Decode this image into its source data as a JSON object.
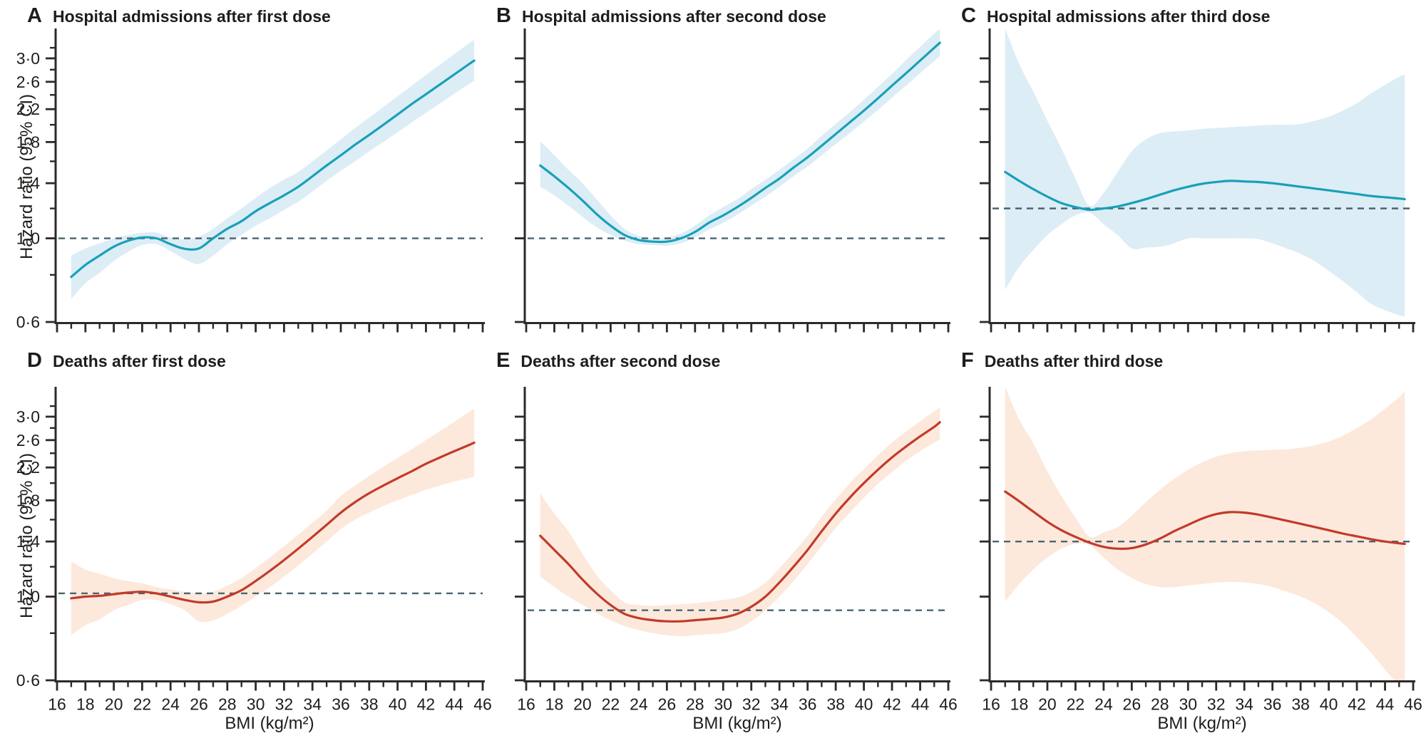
{
  "figure": {
    "y_axis_label": "Hazard ratio (95% CI)",
    "x_axis_label": "BMI (kg/m²)",
    "y_tick_labels": [
      "0·6",
      "1·0",
      "1·4",
      "1·8",
      "2·2",
      "2·6",
      "3·0"
    ],
    "y_tick_values": [
      0.6,
      1.0,
      1.4,
      1.8,
      2.2,
      2.6,
      3.0
    ],
    "y_minor_tick_values": [
      0.8,
      1.2,
      1.6,
      2.0,
      2.4,
      2.8,
      3.2
    ],
    "x_tick_labels": [
      "16",
      "18",
      "20",
      "22",
      "24",
      "26",
      "28",
      "30",
      "32",
      "34",
      "36",
      "38",
      "40",
      "42",
      "44",
      "46"
    ],
    "x_tick_values": [
      16,
      18,
      20,
      22,
      24,
      26,
      28,
      30,
      32,
      34,
      36,
      38,
      40,
      42,
      44,
      46
    ],
    "x_minor_tick_values": [
      17,
      19,
      21,
      23,
      25,
      27,
      29,
      31,
      33,
      35,
      37,
      39,
      41,
      43,
      45
    ],
    "colors": {
      "teal_line": "#18a0b8",
      "teal_band": "#dcedf6",
      "red_line": "#c23a2a",
      "red_band": "#fce9dc",
      "reference_dash": "#4a6470",
      "axis": "#2b2a28",
      "text": "#1d1d1b"
    }
  },
  "panels": [
    {
      "letter": "A",
      "title": "Hospital admissions after first dose",
      "color_key": "teal",
      "reference_line": 1.0,
      "chart_data": {
        "type": "line",
        "xlabel": "BMI (kg/m²)",
        "ylabel": "Hazard ratio (95% CI)",
        "y_scale": "log",
        "ylim": [
          0.6,
          3.6
        ],
        "xlim": [
          16,
          46
        ],
        "x": [
          17,
          18,
          19,
          20,
          21,
          22,
          23,
          24,
          25,
          26,
          27,
          28,
          29,
          30,
          31,
          32,
          33,
          34,
          35,
          36,
          37,
          38,
          39,
          40,
          41,
          42,
          43,
          44,
          45,
          45.4
        ],
        "hazard_ratio": [
          0.79,
          0.85,
          0.9,
          0.95,
          0.985,
          1.005,
          1.0,
          0.965,
          0.938,
          0.94,
          1.0,
          1.06,
          1.11,
          1.18,
          1.24,
          1.3,
          1.37,
          1.46,
          1.56,
          1.66,
          1.77,
          1.88,
          2.0,
          2.13,
          2.27,
          2.41,
          2.56,
          2.72,
          2.89,
          2.96
        ],
        "ci_lower": [
          0.69,
          0.76,
          0.81,
          0.87,
          0.92,
          0.96,
          0.965,
          0.925,
          0.88,
          0.855,
          0.9,
          0.965,
          1.02,
          1.08,
          1.13,
          1.19,
          1.25,
          1.33,
          1.42,
          1.51,
          1.6,
          1.7,
          1.8,
          1.91,
          2.03,
          2.15,
          2.28,
          2.42,
          2.56,
          2.62
        ],
        "ci_upper": [
          0.9,
          0.94,
          0.97,
          1.0,
          1.02,
          1.035,
          1.035,
          1.005,
          0.995,
          1.01,
          1.06,
          1.13,
          1.2,
          1.28,
          1.36,
          1.43,
          1.5,
          1.6,
          1.71,
          1.83,
          1.96,
          2.09,
          2.23,
          2.38,
          2.54,
          2.71,
          2.89,
          3.08,
          3.28,
          3.36
        ]
      }
    },
    {
      "letter": "B",
      "title": "Hospital admissions after second dose",
      "color_key": "teal",
      "reference_line": 1.0,
      "chart_data": {
        "type": "line",
        "xlabel": "BMI (kg/m²)",
        "ylabel": "Hazard ratio (95% CI)",
        "y_scale": "log",
        "ylim": [
          0.6,
          3.6
        ],
        "xlim": [
          16,
          46
        ],
        "x": [
          17,
          18,
          19,
          20,
          21,
          22,
          23,
          24,
          25,
          26,
          27,
          28,
          29,
          30,
          31,
          32,
          33,
          34,
          35,
          36,
          37,
          38,
          39,
          40,
          41,
          42,
          43,
          44,
          45,
          45.4
        ],
        "hazard_ratio": [
          1.56,
          1.46,
          1.36,
          1.26,
          1.16,
          1.08,
          1.02,
          0.99,
          0.98,
          0.98,
          1.0,
          1.04,
          1.1,
          1.15,
          1.21,
          1.28,
          1.36,
          1.44,
          1.54,
          1.64,
          1.76,
          1.89,
          2.03,
          2.18,
          2.35,
          2.54,
          2.74,
          2.96,
          3.2,
          3.3
        ],
        "ci_lower": [
          1.37,
          1.3,
          1.22,
          1.14,
          1.07,
          1.02,
          0.985,
          0.965,
          0.96,
          0.955,
          0.97,
          1.005,
          1.055,
          1.1,
          1.155,
          1.22,
          1.29,
          1.37,
          1.46,
          1.55,
          1.66,
          1.78,
          1.9,
          2.04,
          2.19,
          2.36,
          2.54,
          2.74,
          2.95,
          3.04
        ],
        "ci_upper": [
          1.81,
          1.66,
          1.52,
          1.4,
          1.27,
          1.15,
          1.06,
          1.015,
          1.0,
          1.005,
          1.03,
          1.08,
          1.15,
          1.21,
          1.27,
          1.35,
          1.43,
          1.52,
          1.62,
          1.73,
          1.87,
          2.01,
          2.16,
          2.33,
          2.52,
          2.73,
          2.97,
          3.22,
          3.49,
          3.58
        ]
      }
    },
    {
      "letter": "C",
      "title": "Hospital admissions after third dose",
      "color_key": "teal",
      "reference_line": 1.2,
      "chart_data": {
        "type": "line",
        "xlabel": "BMI (kg/m²)",
        "ylabel": "Hazard ratio (95% CI)",
        "y_scale": "log",
        "ylim": [
          0.6,
          3.6
        ],
        "xlim": [
          16,
          46
        ],
        "x": [
          17,
          18,
          19,
          20,
          21,
          22,
          23,
          24,
          25,
          26,
          27,
          28,
          29,
          30,
          31,
          32,
          33,
          34,
          35,
          36,
          37,
          38,
          39,
          40,
          41,
          42,
          43,
          44,
          45,
          45.4
        ],
        "hazard_ratio": [
          1.5,
          1.42,
          1.35,
          1.29,
          1.24,
          1.21,
          1.19,
          1.2,
          1.215,
          1.24,
          1.27,
          1.305,
          1.34,
          1.37,
          1.395,
          1.41,
          1.42,
          1.415,
          1.41,
          1.4,
          1.385,
          1.37,
          1.355,
          1.34,
          1.325,
          1.31,
          1.295,
          1.285,
          1.275,
          1.27
        ],
        "ci_lower": [
          0.73,
          0.84,
          0.93,
          1.02,
          1.09,
          1.15,
          1.17,
          1.09,
          1.02,
          0.94,
          0.945,
          0.95,
          0.97,
          1.0,
          1.0,
          1.0,
          1.0,
          1.0,
          0.995,
          0.97,
          0.94,
          0.91,
          0.87,
          0.82,
          0.77,
          0.72,
          0.67,
          0.645,
          0.625,
          0.62
        ],
        "ci_upper": [
          3.6,
          2.9,
          2.45,
          2.05,
          1.73,
          1.44,
          1.22,
          1.32,
          1.5,
          1.7,
          1.83,
          1.9,
          1.92,
          1.93,
          1.95,
          1.96,
          1.97,
          1.98,
          1.99,
          2.0,
          2.0,
          2.01,
          2.05,
          2.1,
          2.18,
          2.28,
          2.42,
          2.55,
          2.68,
          2.72
        ]
      }
    },
    {
      "letter": "D",
      "title": "Deaths after first dose",
      "color_key": "red",
      "reference_line": 1.02,
      "chart_data": {
        "type": "line",
        "xlabel": "BMI (kg/m²)",
        "ylabel": "Hazard ratio (95% CI)",
        "y_scale": "log",
        "ylim": [
          0.6,
          3.6
        ],
        "xlim": [
          16,
          46
        ],
        "x": [
          17,
          18,
          19,
          20,
          21,
          22,
          23,
          24,
          25,
          26,
          27,
          28,
          29,
          30,
          31,
          32,
          33,
          34,
          35,
          36,
          37,
          38,
          39,
          40,
          41,
          42,
          43,
          44,
          45,
          45.4
        ],
        "hazard_ratio": [
          0.99,
          1.0,
          1.005,
          1.015,
          1.025,
          1.03,
          1.02,
          1.0,
          0.98,
          0.966,
          0.97,
          1.0,
          1.04,
          1.1,
          1.17,
          1.25,
          1.34,
          1.44,
          1.55,
          1.67,
          1.78,
          1.88,
          1.97,
          2.06,
          2.15,
          2.25,
          2.34,
          2.43,
          2.52,
          2.56
        ],
        "ci_lower": [
          0.79,
          0.84,
          0.87,
          0.92,
          0.95,
          0.98,
          0.98,
          0.955,
          0.92,
          0.86,
          0.865,
          0.9,
          0.945,
          1.0,
          1.06,
          1.13,
          1.21,
          1.3,
          1.4,
          1.51,
          1.6,
          1.67,
          1.74,
          1.8,
          1.86,
          1.92,
          1.97,
          2.02,
          2.06,
          2.08
        ],
        "ci_upper": [
          1.24,
          1.18,
          1.15,
          1.12,
          1.1,
          1.085,
          1.06,
          1.045,
          1.03,
          1.02,
          1.03,
          1.07,
          1.12,
          1.19,
          1.27,
          1.36,
          1.46,
          1.57,
          1.69,
          1.85,
          1.97,
          2.09,
          2.21,
          2.33,
          2.46,
          2.6,
          2.75,
          2.91,
          3.08,
          3.15
        ]
      }
    },
    {
      "letter": "E",
      "title": "Deaths after second dose",
      "color_key": "red",
      "reference_line": 0.92,
      "chart_data": {
        "type": "line",
        "xlabel": "BMI (kg/m²)",
        "ylabel": "Hazard ratio (95% CI)",
        "y_scale": "log",
        "ylim": [
          0.6,
          3.6
        ],
        "xlim": [
          16,
          46
        ],
        "x": [
          17,
          18,
          19,
          20,
          21,
          22,
          23,
          24,
          25,
          26,
          27,
          28,
          29,
          30,
          31,
          32,
          33,
          34,
          35,
          36,
          37,
          38,
          39,
          40,
          41,
          42,
          43,
          44,
          45,
          45.4
        ],
        "hazard_ratio": [
          1.45,
          1.33,
          1.22,
          1.11,
          1.02,
          0.95,
          0.9,
          0.877,
          0.866,
          0.86,
          0.86,
          0.866,
          0.872,
          0.88,
          0.9,
          0.94,
          1.0,
          1.09,
          1.2,
          1.33,
          1.49,
          1.66,
          1.83,
          2.0,
          2.17,
          2.34,
          2.5,
          2.66,
          2.82,
          2.9
        ],
        "ci_lower": [
          1.13,
          1.06,
          1.0,
          0.95,
          0.905,
          0.865,
          0.835,
          0.815,
          0.8,
          0.79,
          0.785,
          0.79,
          0.795,
          0.8,
          0.82,
          0.86,
          0.92,
          1.0,
          1.1,
          1.22,
          1.36,
          1.52,
          1.67,
          1.83,
          1.99,
          2.14,
          2.29,
          2.43,
          2.56,
          2.62
        ],
        "ci_upper": [
          1.88,
          1.66,
          1.49,
          1.3,
          1.14,
          1.04,
          0.965,
          0.95,
          0.945,
          0.95,
          0.955,
          0.96,
          0.97,
          0.98,
          0.995,
          1.03,
          1.09,
          1.19,
          1.31,
          1.45,
          1.63,
          1.81,
          2.0,
          2.18,
          2.37,
          2.56,
          2.74,
          2.92,
          3.1,
          3.18
        ]
      }
    },
    {
      "letter": "F",
      "title": "Deaths after third dose",
      "color_key": "red",
      "reference_line": 1.4,
      "chart_data": {
        "type": "line",
        "xlabel": "BMI (kg/m²)",
        "ylabel": "Hazard ratio (95% CI)",
        "y_scale": "log",
        "ylim": [
          0.6,
          3.6
        ],
        "xlim": [
          16,
          46
        ],
        "x": [
          17,
          18,
          19,
          20,
          21,
          22,
          23,
          24,
          25,
          26,
          27,
          28,
          29,
          30,
          31,
          32,
          33,
          34,
          35,
          36,
          37,
          38,
          39,
          40,
          41,
          42,
          43,
          44,
          45,
          45.4
        ],
        "hazard_ratio": [
          1.9,
          1.79,
          1.68,
          1.58,
          1.5,
          1.44,
          1.39,
          1.355,
          1.34,
          1.345,
          1.375,
          1.425,
          1.49,
          1.55,
          1.61,
          1.655,
          1.675,
          1.67,
          1.65,
          1.62,
          1.59,
          1.56,
          1.53,
          1.5,
          1.47,
          1.445,
          1.42,
          1.4,
          1.385,
          1.38
        ],
        "ci_lower": [
          0.97,
          1.08,
          1.18,
          1.27,
          1.34,
          1.38,
          1.37,
          1.27,
          1.18,
          1.12,
          1.08,
          1.06,
          1.06,
          1.07,
          1.08,
          1.09,
          1.095,
          1.09,
          1.08,
          1.06,
          1.03,
          1.0,
          0.96,
          0.91,
          0.85,
          0.78,
          0.71,
          0.64,
          0.58,
          0.555
        ],
        "ci_upper": [
          3.6,
          2.95,
          2.55,
          2.15,
          1.85,
          1.62,
          1.44,
          1.48,
          1.53,
          1.64,
          1.78,
          1.92,
          2.05,
          2.17,
          2.27,
          2.35,
          2.4,
          2.43,
          2.44,
          2.45,
          2.46,
          2.48,
          2.52,
          2.58,
          2.67,
          2.8,
          2.95,
          3.15,
          3.38,
          3.5
        ]
      }
    }
  ]
}
